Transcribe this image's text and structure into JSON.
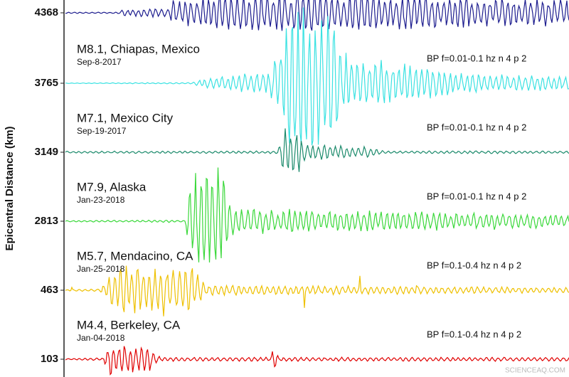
{
  "axis_label": "Epicentral Distance (km)",
  "traces": [
    {
      "distance": "4368",
      "color": "#1c1c8e"
    },
    {
      "distance": "3765",
      "event": "M8.1, Chiapas, Mexico",
      "date": "Sep-8-2017",
      "filter": "BP f=0.01-0.1 hz n 4 p 2",
      "color": "#3ae2e2"
    },
    {
      "distance": "3149",
      "event": "M7.1, Mexico City",
      "date": "Sep-19-2017",
      "filter": "BP f=0.01-0.1 hz n 4 p 2",
      "color": "#1b8a6b"
    },
    {
      "distance": "2813",
      "event": "M7.9, Alaska",
      "date": "Jan-23-2018",
      "filter": "BP f=0.01-0.1 hz n 4 p 2",
      "color": "#3ad83a"
    },
    {
      "distance": "463",
      "event": "M5.7, Mendacino, CA",
      "date": "Jan-25-2018",
      "filter": "BP f=0.1-0.4 hz n 4 p 2",
      "color": "#eec000"
    },
    {
      "distance": "103",
      "event": "M4.4, Berkeley, CA",
      "date": "Jan-04-2018",
      "filter": "BP f=0.1-0.4 hz n 4 p 2",
      "color": "#e00000"
    }
  ],
  "watermark": "SCIENCEAQ.COM"
}
